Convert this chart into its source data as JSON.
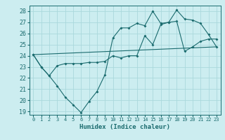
{
  "xlabel": "Humidex (Indice chaleur)",
  "bg_color": "#ccedf0",
  "grid_color": "#aad8dc",
  "line_color": "#1a6b6e",
  "xlim": [
    -0.5,
    23.5
  ],
  "ylim": [
    18.7,
    28.5
  ],
  "xticks": [
    0,
    1,
    2,
    3,
    4,
    5,
    6,
    7,
    8,
    9,
    10,
    11,
    12,
    13,
    14,
    15,
    16,
    17,
    18,
    19,
    20,
    21,
    22,
    23
  ],
  "yticks": [
    19,
    20,
    21,
    22,
    23,
    24,
    25,
    26,
    27,
    28
  ],
  "series1_x": [
    0,
    1,
    2,
    3,
    4,
    5,
    6,
    7,
    8,
    9,
    10,
    11,
    12,
    13,
    14,
    15,
    16,
    17,
    18,
    19,
    20,
    21,
    22,
    23
  ],
  "series1_y": [
    24.1,
    23.0,
    22.2,
    21.3,
    20.3,
    19.6,
    18.9,
    19.9,
    20.8,
    22.3,
    25.6,
    26.5,
    26.5,
    26.9,
    26.7,
    28.0,
    26.9,
    27.0,
    28.1,
    27.3,
    27.2,
    26.9,
    25.9,
    24.8
  ],
  "series2_x": [
    0,
    1,
    2,
    3,
    4,
    5,
    6,
    7,
    8,
    9,
    10,
    11,
    12,
    13,
    14,
    15,
    16,
    17,
    18,
    19,
    20,
    21,
    22,
    23
  ],
  "series2_y": [
    24.1,
    23.0,
    22.2,
    23.1,
    23.3,
    23.3,
    23.3,
    23.4,
    23.4,
    23.5,
    24.0,
    23.8,
    24.0,
    24.0,
    25.8,
    25.0,
    26.8,
    27.0,
    27.1,
    24.4,
    24.8,
    25.3,
    25.5,
    25.5
  ],
  "series3_x": [
    0,
    23
  ],
  "series3_y": [
    24.1,
    24.8
  ]
}
